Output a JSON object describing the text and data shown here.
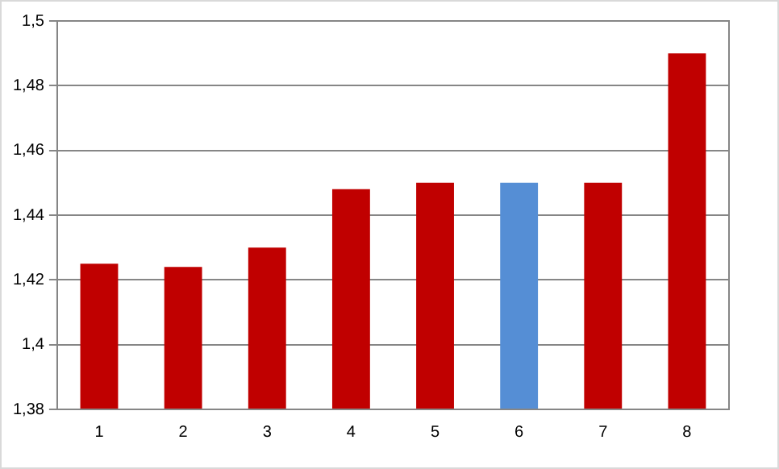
{
  "chart_data": {
    "type": "bar",
    "categories": [
      "1",
      "2",
      "3",
      "4",
      "5",
      "6",
      "7",
      "8"
    ],
    "values": [
      1.425,
      1.424,
      1.43,
      1.448,
      1.45,
      1.45,
      1.45,
      1.49
    ],
    "colors": [
      "#c00000",
      "#c00000",
      "#c00000",
      "#c00000",
      "#c00000",
      "#558ed5",
      "#c00000",
      "#c00000"
    ],
    "ylim": [
      1.38,
      1.5
    ],
    "yticks": [
      {
        "value": 1.38,
        "label": "1,38"
      },
      {
        "value": 1.4,
        "label": "1,4"
      },
      {
        "value": 1.42,
        "label": "1,42"
      },
      {
        "value": 1.44,
        "label": "1,44"
      },
      {
        "value": 1.46,
        "label": "1,46"
      },
      {
        "value": 1.48,
        "label": "1,48"
      },
      {
        "value": 1.5,
        "label": "1,5"
      }
    ],
    "grid": "y",
    "legend": false
  }
}
